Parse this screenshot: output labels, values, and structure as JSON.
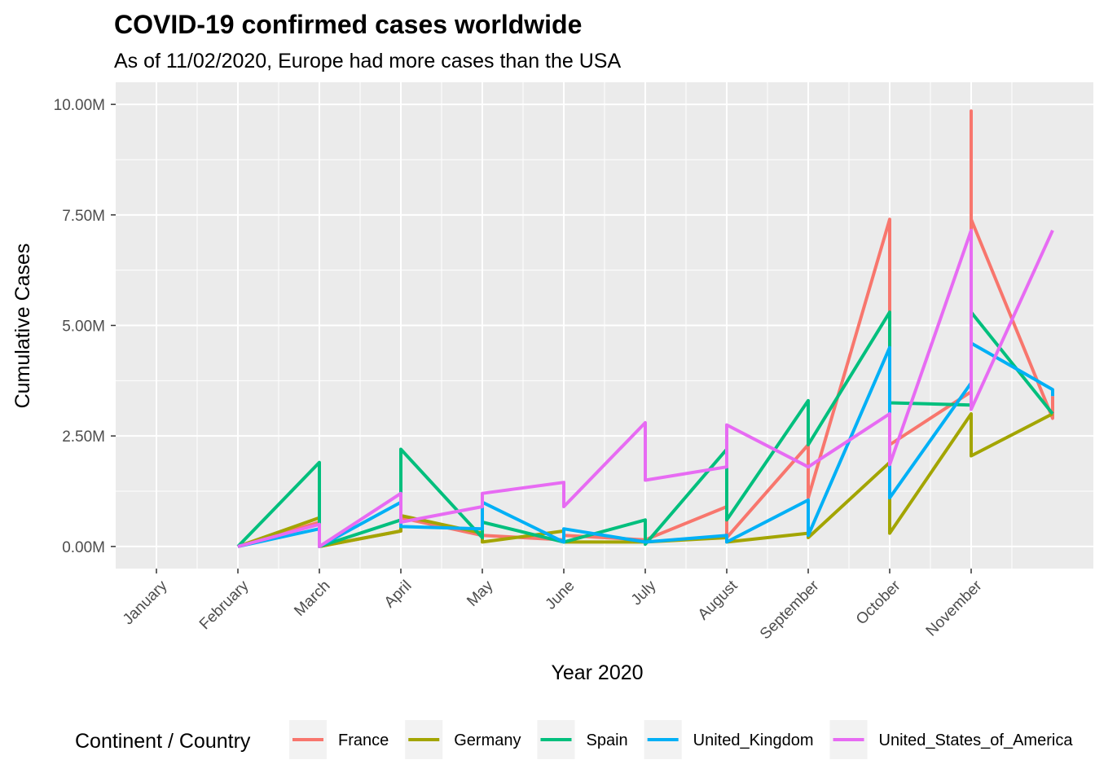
{
  "chart_data": {
    "type": "line",
    "title": "COVID-19 confirmed cases worldwide",
    "subtitle": "As of 11/02/2020, Europe had more cases than the USA",
    "xlabel": "Year 2020",
    "ylabel": "Cumulative Cases",
    "x_ticks": [
      "January",
      "February",
      "March",
      "April",
      "May",
      "June",
      "July",
      "August",
      "September",
      "October",
      "November"
    ],
    "x_range": [
      0.5,
      12.5
    ],
    "y_ticks": [
      "0.00M",
      "2.50M",
      "5.00M",
      "7.50M",
      "10.00M"
    ],
    "y_tick_values": [
      0,
      2.5,
      5,
      7.5,
      10
    ],
    "ylim": [
      -0.5,
      10.5
    ],
    "y_units": "millions",
    "grid": true,
    "legend": {
      "title": "Continent / Country",
      "position": "bottom"
    },
    "series": [
      {
        "name": "France",
        "color": "#F8766D",
        "points": [
          [
            2,
            0
          ],
          [
            3,
            0.55
          ],
          [
            3,
            0.0
          ],
          [
            4,
            0.35
          ],
          [
            4,
            0.65
          ],
          [
            5,
            0.25
          ],
          [
            6,
            0.15
          ],
          [
            6,
            0.25
          ],
          [
            7,
            0.15
          ],
          [
            8,
            0.9
          ],
          [
            8,
            0.2
          ],
          [
            9,
            2.3
          ],
          [
            9,
            1.1
          ],
          [
            10,
            7.4
          ],
          [
            10,
            2.3
          ],
          [
            11,
            3.5
          ],
          [
            11,
            9.85
          ],
          [
            11,
            7.4
          ],
          [
            12,
            2.9
          ],
          [
            12,
            3.4
          ]
        ]
      },
      {
        "name": "Germany",
        "color": "#A3A500",
        "points": [
          [
            2,
            0
          ],
          [
            3,
            0.65
          ],
          [
            3,
            0.0
          ],
          [
            4,
            0.35
          ],
          [
            4,
            0.7
          ],
          [
            5,
            0.3
          ],
          [
            5,
            0.1
          ],
          [
            6,
            0.35
          ],
          [
            6,
            0.1
          ],
          [
            7,
            0.1
          ],
          [
            8,
            0.2
          ],
          [
            8,
            0.1
          ],
          [
            9,
            0.3
          ],
          [
            9,
            0.2
          ],
          [
            10,
            1.9
          ],
          [
            10,
            0.3
          ],
          [
            11,
            3.0
          ],
          [
            11,
            2.05
          ],
          [
            12,
            3.0
          ]
        ]
      },
      {
        "name": "Spain",
        "color": "#00BF7D",
        "points": [
          [
            2,
            0
          ],
          [
            3,
            1.9
          ],
          [
            3,
            0.0
          ],
          [
            4,
            0.6
          ],
          [
            4,
            2.2
          ],
          [
            5,
            0.2
          ],
          [
            5,
            0.55
          ],
          [
            6,
            0.1
          ],
          [
            7,
            0.6
          ],
          [
            7,
            0.05
          ],
          [
            8,
            2.2
          ],
          [
            8,
            0.6
          ],
          [
            9,
            3.3
          ],
          [
            9,
            2.3
          ],
          [
            10,
            5.3
          ],
          [
            10,
            3.25
          ],
          [
            11,
            3.2
          ],
          [
            11,
            5.3
          ],
          [
            12,
            3.0
          ]
        ]
      },
      {
        "name": "United_Kingdom",
        "color": "#00B0F6",
        "points": [
          [
            2,
            0
          ],
          [
            3,
            0.4
          ],
          [
            3,
            0.0
          ],
          [
            4,
            1.0
          ],
          [
            4,
            0.45
          ],
          [
            5,
            0.4
          ],
          [
            5,
            1.0
          ],
          [
            6,
            0.1
          ],
          [
            6,
            0.4
          ],
          [
            7,
            0.1
          ],
          [
            8,
            0.25
          ],
          [
            8,
            0.1
          ],
          [
            9,
            1.05
          ],
          [
            9,
            0.25
          ],
          [
            10,
            4.5
          ],
          [
            10,
            1.1
          ],
          [
            11,
            3.7
          ],
          [
            11,
            4.6
          ],
          [
            12,
            3.55
          ],
          [
            12,
            3.4
          ]
        ]
      },
      {
        "name": "United_States_of_America",
        "color": "#E76BF3",
        "points": [
          [
            2,
            0
          ],
          [
            3,
            0.5
          ],
          [
            3,
            0.0
          ],
          [
            4,
            1.2
          ],
          [
            4,
            0.55
          ],
          [
            5,
            0.9
          ],
          [
            5,
            1.2
          ],
          [
            6,
            1.45
          ],
          [
            6,
            0.9
          ],
          [
            7,
            2.8
          ],
          [
            7,
            1.5
          ],
          [
            8,
            1.8
          ],
          [
            8,
            2.75
          ],
          [
            9,
            1.8
          ],
          [
            10,
            3.0
          ],
          [
            10,
            1.85
          ],
          [
            11,
            7.15
          ],
          [
            11,
            3.1
          ],
          [
            12,
            7.15
          ]
        ]
      }
    ]
  }
}
